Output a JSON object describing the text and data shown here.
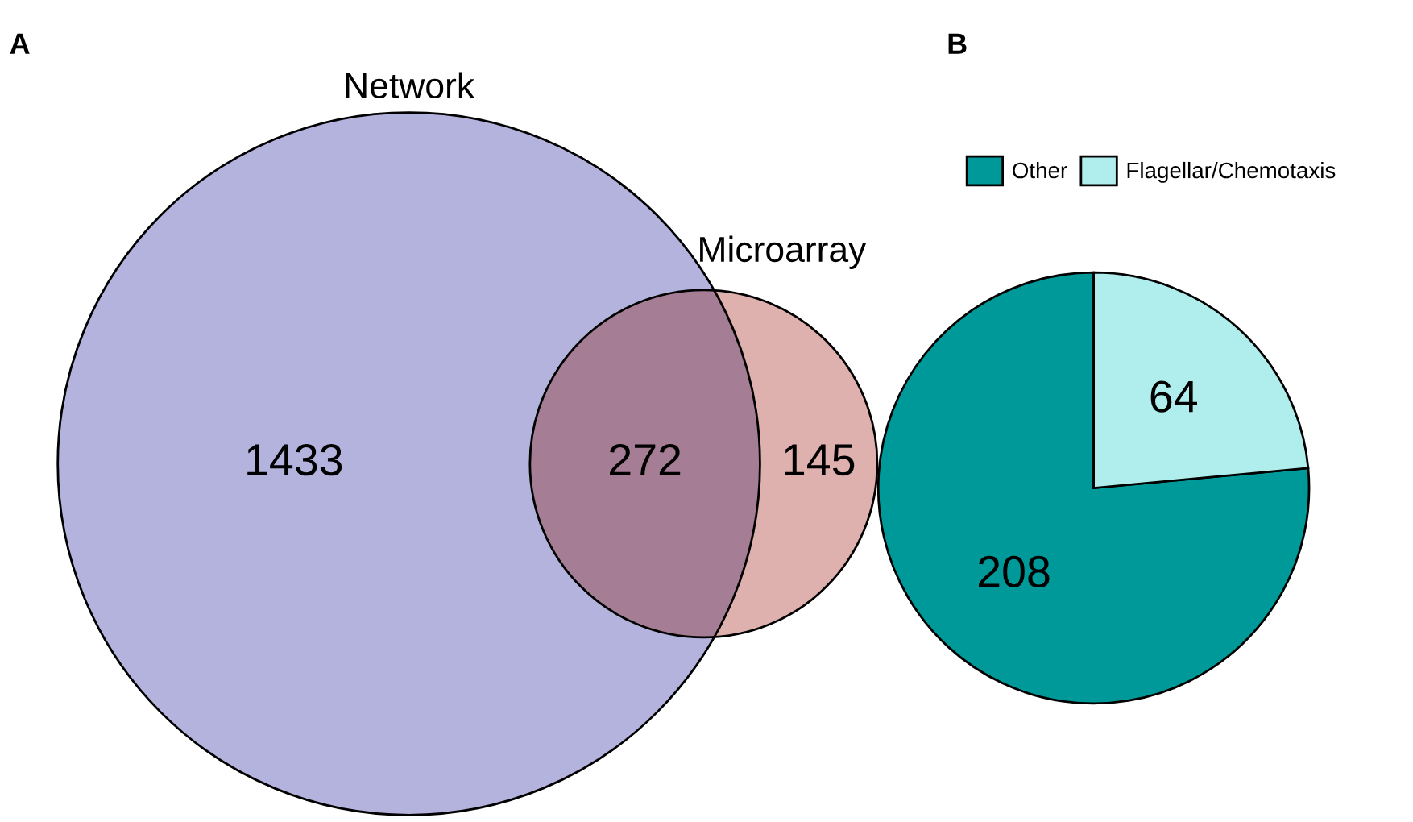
{
  "chart_data": [
    {
      "type": "other",
      "title": "A",
      "categories": [
        null,
        null,
        null
      ],
      "values": [
        1433,
        272,
        145
      ],
      "colors": [
        "#b3b3dd",
        "#a57d95",
        "#deb0ae"
      ],
      "data_labels": true,
      "annotations": [
        "Network",
        "Microarray"
      ]
    },
    {
      "type": "pie",
      "title": "B",
      "categories": [
        "Other",
        "Flagellar/Chemotaxis"
      ],
      "values": [
        208,
        64
      ],
      "colors": [
        "#009999",
        "#b0eeee"
      ],
      "data_labels": true,
      "legend": "top"
    }
  ]
}
